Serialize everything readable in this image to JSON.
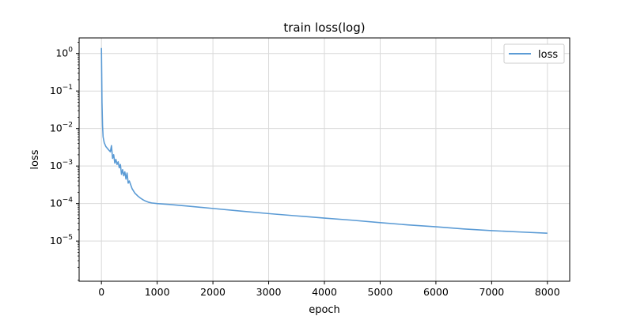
{
  "chart_data": {
    "type": "line",
    "title": "train loss(log)",
    "xlabel": "epoch",
    "ylabel": "loss",
    "xlim": [
      -400,
      8400
    ],
    "ylim": [
      8.5e-07,
      2.6
    ],
    "yscale": "log",
    "grid": true,
    "legend_position": "top-right",
    "x_ticks": [
      0,
      1000,
      2000,
      3000,
      4000,
      5000,
      6000,
      7000,
      8000
    ],
    "y_ticks": [
      1e-05,
      0.0001,
      0.001,
      0.01,
      0.1,
      1
    ],
    "y_tick_labels": [
      {
        "base": "10",
        "exp": "−5"
      },
      {
        "base": "10",
        "exp": "−4"
      },
      {
        "base": "10",
        "exp": "−3"
      },
      {
        "base": "10",
        "exp": "−2"
      },
      {
        "base": "10",
        "exp": "−1"
      },
      {
        "base": "10",
        "exp": "0"
      }
    ],
    "series": [
      {
        "name": "loss",
        "color": "#5b9bd5",
        "x": [
          0,
          5,
          10,
          20,
          30,
          50,
          80,
          120,
          160,
          180,
          200,
          220,
          240,
          260,
          280,
          300,
          320,
          340,
          360,
          380,
          400,
          420,
          440,
          460,
          480,
          500,
          550,
          600,
          650,
          700,
          750,
          800,
          850,
          900,
          1000,
          1200,
          1500,
          2000,
          2500,
          3000,
          3500,
          4000,
          4500,
          5000,
          5500,
          6000,
          6500,
          7000,
          7500,
          8000
        ],
        "y": [
          1.4,
          0.3,
          0.05,
          0.012,
          0.006,
          0.0042,
          0.0033,
          0.0028,
          0.0024,
          0.0035,
          0.0016,
          0.002,
          0.0012,
          0.0015,
          0.0011,
          0.0013,
          0.0009,
          0.0011,
          0.0006,
          0.0008,
          0.00055,
          0.0007,
          0.00045,
          0.00065,
          0.00035,
          0.0004,
          0.00025,
          0.00019,
          0.00016,
          0.00014,
          0.000125,
          0.000115,
          0.000108,
          0.000104,
          0.0001,
          9.5e-05,
          8.7e-05,
          7.4e-05,
          6.3e-05,
          5.4e-05,
          4.7e-05,
          4.1e-05,
          3.6e-05,
          3.1e-05,
          2.7e-05,
          2.4e-05,
          2.1e-05,
          1.9e-05,
          1.75e-05,
          1.62e-05
        ]
      }
    ]
  }
}
